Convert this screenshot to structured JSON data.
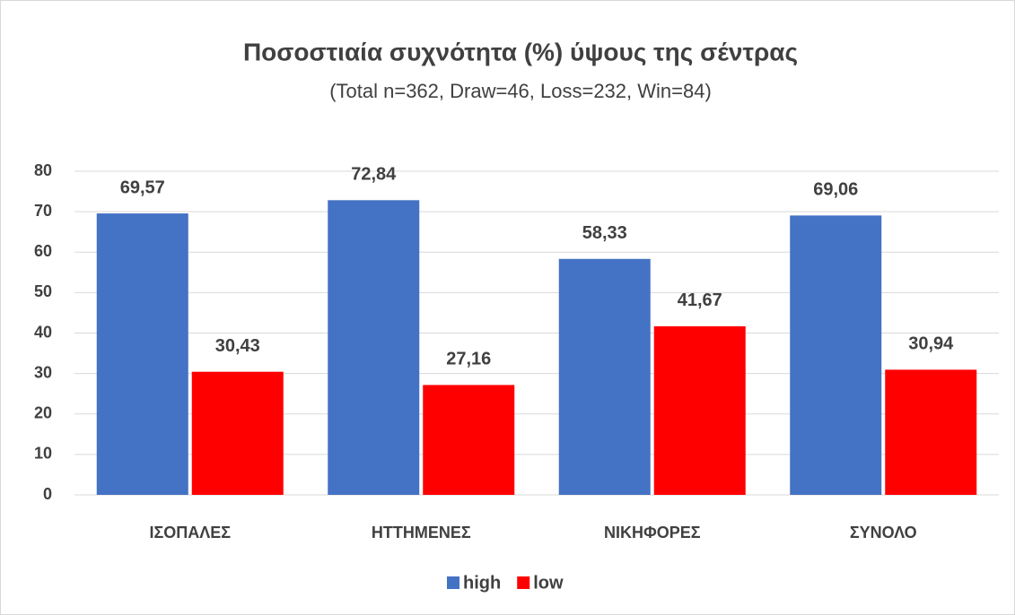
{
  "chart_data": {
    "type": "bar",
    "title": "Ποσοστιαία συχνότητα (%) ύψους της σέντρας",
    "subtitle": "(Total n=362, Draw=46, Loss=232, Win=84)",
    "categories": [
      "ΙΣΟΠΑΛΕΣ",
      "ΗΤΤΗΜΕΝΕΣ",
      "ΝΙΚΗΦΟΡΕΣ",
      "ΣΥΝΟΛΟ"
    ],
    "series": [
      {
        "name": "high",
        "color": "#4472c4",
        "values": [
          69.57,
          72.84,
          58.33,
          69.06
        ],
        "value_labels": [
          "69,57",
          "72,84",
          "58,33",
          "69,06"
        ]
      },
      {
        "name": "low",
        "color": "#ff0000",
        "values": [
          30.43,
          27.16,
          41.67,
          30.94
        ],
        "value_labels": [
          "30,43",
          "27,16",
          "41,67",
          "30,94"
        ]
      }
    ],
    "ylim": [
      0,
      80
    ],
    "yticks": [
      0,
      10,
      20,
      30,
      40,
      50,
      60,
      70,
      80
    ],
    "grid": true,
    "legend": "bottom"
  }
}
